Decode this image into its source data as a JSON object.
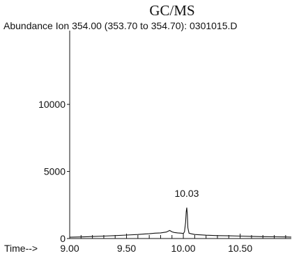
{
  "chart_data": {
    "type": "line",
    "title": "GC/MS",
    "subtitle": "Abundance Ion 354.00 (353.70 to 354.70): 0301015.D",
    "xlabel": "Time-->",
    "ylabel": "",
    "xlim": [
      9.0,
      10.95
    ],
    "ylim": [
      0,
      15500
    ],
    "x_ticks": [
      9.0,
      9.5,
      10.0,
      10.5
    ],
    "x_tick_labels": [
      "9.00",
      "9.50",
      "10.00",
      "10.50"
    ],
    "x_minor_step": 0.1,
    "y_ticks": [
      0,
      5000,
      10000
    ],
    "y_tick_labels": [
      "0",
      "5000",
      "10000"
    ],
    "grid": false,
    "legend": "none",
    "annotations": [
      {
        "text": "10.03",
        "x": 10.03,
        "y": 2900
      }
    ],
    "series": [
      {
        "x": [
          9.0,
          9.1,
          9.2,
          9.3,
          9.4,
          9.5,
          9.6,
          9.65,
          9.7,
          9.75,
          9.8,
          9.85,
          9.88,
          9.9,
          9.92,
          9.95,
          9.98,
          10.0,
          10.01,
          10.02,
          10.025,
          10.03,
          10.035,
          10.04,
          10.05,
          10.07,
          10.1,
          10.2,
          10.3,
          10.4,
          10.5,
          10.6,
          10.7,
          10.8,
          10.9,
          10.95
        ],
        "y": [
          100,
          120,
          150,
          180,
          220,
          260,
          300,
          330,
          360,
          400,
          420,
          480,
          600,
          500,
          450,
          420,
          400,
          380,
          500,
          1200,
          2000,
          2300,
          1800,
          800,
          400,
          350,
          300,
          250,
          220,
          200,
          180,
          160,
          140,
          130,
          120,
          110
        ]
      }
    ]
  }
}
